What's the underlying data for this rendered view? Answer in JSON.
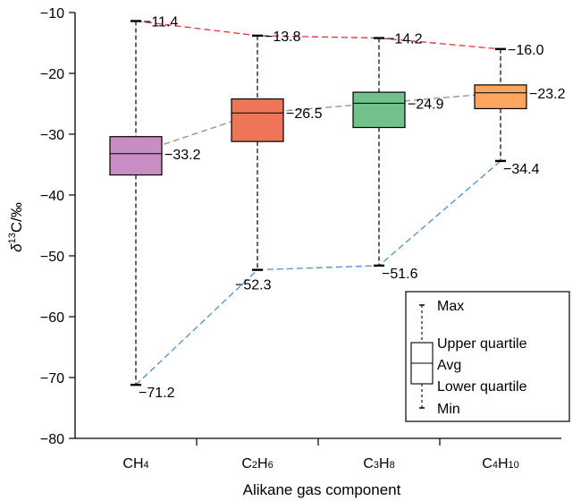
{
  "chart_data": {
    "type": "box",
    "xlabel": "Alikane gas component",
    "ylabel": {
      "symbol": "δ",
      "sup": "13",
      "rest": "C/‰"
    },
    "ylim": [
      -80,
      -10
    ],
    "yticks": [
      -10,
      -20,
      -30,
      -40,
      -50,
      -60,
      -70,
      -80
    ],
    "ytick_labels": [
      "−10",
      "−20",
      "−30",
      "−40",
      "−50",
      "−60",
      "−70",
      "−80"
    ],
    "categories": [
      {
        "base": "C",
        "sub1": "",
        "mid": "H",
        "sub2": "4"
      },
      {
        "base": "C",
        "sub1": "2",
        "mid": "H",
        "sub2": "6"
      },
      {
        "base": "C",
        "sub1": "3",
        "mid": "H",
        "sub2": "8"
      },
      {
        "base": "C",
        "sub1": "4",
        "mid": "H",
        "sub2": "10"
      }
    ],
    "boxes": [
      {
        "max": -11.4,
        "q3": -30.4,
        "avg": -33.2,
        "q1": -36.7,
        "min": -71.2,
        "color": "#c88ec4",
        "labels": {
          "max": "−11.4",
          "avg": "−33.2",
          "min": "−71.2"
        }
      },
      {
        "max": -13.8,
        "q3": -24.2,
        "avg": -26.5,
        "q1": -31.2,
        "min": -52.3,
        "color": "#ee7658",
        "labels": {
          "max": "−13.8",
          "avg": "−26.5",
          "min": "−52.3"
        }
      },
      {
        "max": -14.2,
        "q3": -23.1,
        "avg": -24.9,
        "q1": -28.9,
        "min": -51.6,
        "color": "#72c08a",
        "labels": {
          "max": "−14.2",
          "avg": "−24.9",
          "min": "−51.6"
        }
      },
      {
        "max": -16.0,
        "q3": -21.9,
        "avg": -23.2,
        "q1": -25.8,
        "min": -34.4,
        "color": "#fba55f",
        "labels": {
          "max": "−16.0",
          "avg": "−23.2",
          "min": "−34.4"
        }
      }
    ],
    "trend_lines": [
      {
        "stat": "max",
        "color": "#e0303a"
      },
      {
        "stat": "avg",
        "color": "#8c8c8c"
      },
      {
        "stat": "min",
        "color": "#4f8ec9"
      }
    ],
    "legend": {
      "position": "bottom-right",
      "items": [
        "Max",
        "Upper quartile",
        "Avg",
        "Lower quartile",
        "Min"
      ]
    },
    "grid": false
  }
}
